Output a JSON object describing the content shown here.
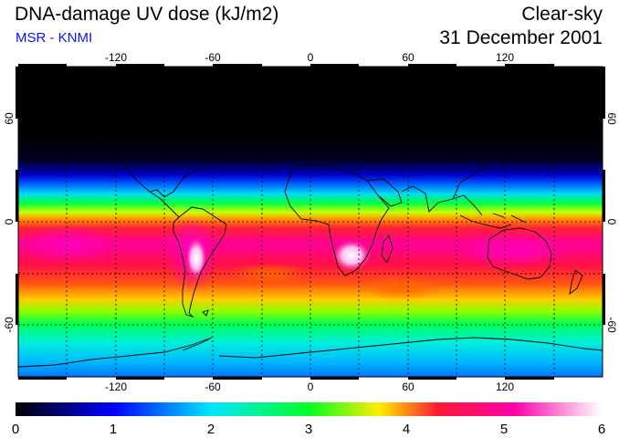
{
  "header": {
    "title": "DNA-damage UV dose (kJ/m2)",
    "source": "MSR - KNMI",
    "product": "Clear-sky",
    "date": "31 December 2001"
  },
  "map": {
    "lon_ticks": [
      "-120",
      "-60",
      "0",
      "60",
      "120"
    ],
    "lat_ticks_left": [
      "60",
      "0",
      "-60"
    ],
    "lat_ticks_right": [
      "60",
      "0",
      "-60"
    ],
    "lon_range": [
      -180,
      180
    ],
    "lat_range": [
      -90,
      90
    ],
    "grid_lon": [
      -150,
      -120,
      -90,
      -60,
      -30,
      0,
      30,
      60,
      90,
      120,
      150
    ],
    "grid_lat": [
      -60,
      -30,
      0,
      30,
      60
    ]
  },
  "colorbar": {
    "min": 0,
    "max": 6,
    "tick_labels": [
      "0",
      "1",
      "2",
      "3",
      "4",
      "5",
      "6"
    ],
    "colors": [
      "#000000",
      "#0000ff",
      "#00e5ff",
      "#00ff22",
      "#ffee00",
      "#ff1a33",
      "#ff00aa",
      "#ffffff"
    ]
  },
  "colors": {
    "subtitle": "#1010ee",
    "background": "#ffffff"
  }
}
